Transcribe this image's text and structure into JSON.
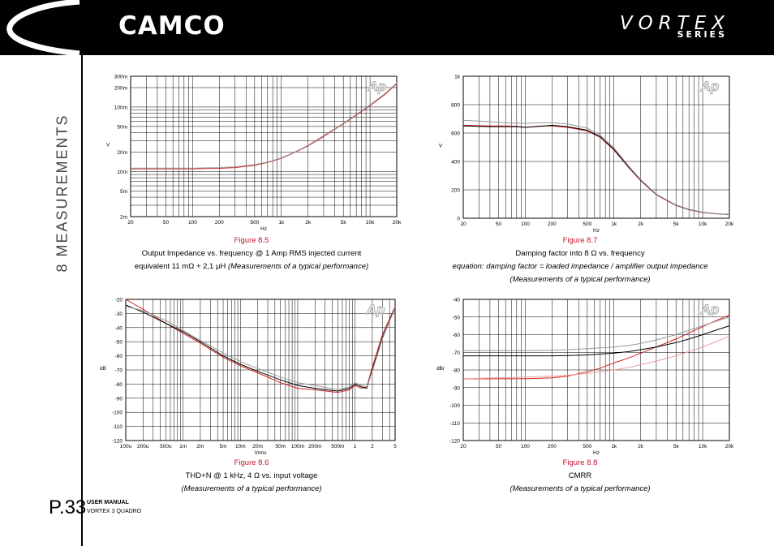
{
  "header": {
    "brand": "CAMCO",
    "series_name": "VORTEX",
    "series_sub": "SERIES"
  },
  "section_title": "8 MEASUREMENTS",
  "page_number": "P.33",
  "footer": {
    "manual_label": "USER MANUAL",
    "model": "VORTEX 3 QUADRO"
  },
  "ap_logo": "Ap",
  "colors": {
    "red": "#d42020",
    "black": "#000000",
    "gray": "#999999",
    "lightred": "#e8a0a0"
  },
  "figures": [
    {
      "number": "Figure 8.5",
      "caption": "Output Impedance vs. frequency @ 1 Amp RMS injected current",
      "caption2": "equivalent 11 mΩ + 2,1 μH",
      "note": "(Measurements of a typical performance)"
    },
    {
      "number": "Figure 8.7",
      "caption": "Damping factor into 8 Ω vs. frequency",
      "caption2": "equation: damping factor = loaded impedance / amplifier output impedance",
      "note": "(Measurements of a typical performance)"
    },
    {
      "number": "Figure 8.6",
      "caption": "THD+N @ 1 kHz, 4 Ω vs. input voltage",
      "caption2": "",
      "note": "(Measurements of a typical performance)"
    },
    {
      "number": "Figure 8.8",
      "caption": "CMRR",
      "caption2": "",
      "note": "(Measurements of a typical performance)"
    }
  ],
  "chart_data": [
    {
      "type": "line",
      "xscale": "log",
      "yscale": "log",
      "xlim": [
        20,
        20000
      ],
      "ylim": [
        0.002,
        0.3
      ],
      "xlabel": "Hz",
      "ylabel": "V",
      "xticks": [
        {
          "v": 20,
          "l": "20"
        },
        {
          "v": 50,
          "l": "50"
        },
        {
          "v": 100,
          "l": "100"
        },
        {
          "v": 200,
          "l": "200"
        },
        {
          "v": 500,
          "l": "500"
        },
        {
          "v": 1000,
          "l": "1k"
        },
        {
          "v": 2000,
          "l": "2k"
        },
        {
          "v": 5000,
          "l": "5k"
        },
        {
          "v": 10000,
          "l": "10k"
        },
        {
          "v": 20000,
          "l": "20k"
        }
      ],
      "yticks": [
        {
          "v": 0.002,
          "l": "2m"
        },
        {
          "v": 0.005,
          "l": "5m"
        },
        {
          "v": 0.01,
          "l": "10m"
        },
        {
          "v": 0.02,
          "l": "20m"
        },
        {
          "v": 0.05,
          "l": "50m"
        },
        {
          "v": 0.1,
          "l": "100m"
        },
        {
          "v": 0.2,
          "l": "200m"
        },
        {
          "v": 0.3,
          "l": "300m"
        }
      ],
      "series": [
        {
          "color": "#d42020",
          "x": [
            20,
            50,
            100,
            200,
            300,
            500,
            700,
            1000,
            1500,
            2000,
            3000,
            5000,
            7000,
            10000,
            15000,
            20000
          ],
          "y": [
            0.011,
            0.011,
            0.011,
            0.0112,
            0.0115,
            0.0125,
            0.0138,
            0.016,
            0.0205,
            0.025,
            0.035,
            0.055,
            0.075,
            0.105,
            0.16,
            0.23
          ]
        },
        {
          "color": "#999999",
          "x": [
            20,
            50,
            100,
            200,
            300,
            500,
            700,
            1000,
            1500,
            2000,
            3000,
            5000,
            7000,
            10000,
            15000,
            20000
          ],
          "y": [
            0.0113,
            0.0113,
            0.0113,
            0.0115,
            0.0118,
            0.0128,
            0.014,
            0.0163,
            0.0208,
            0.0255,
            0.036,
            0.056,
            0.077,
            0.108,
            0.165,
            0.235
          ]
        }
      ]
    },
    {
      "type": "line",
      "xscale": "log",
      "yscale": "linear",
      "xlim": [
        20,
        20000
      ],
      "ylim": [
        0,
        1000
      ],
      "xlabel": "Hz",
      "ylabel": "V",
      "xticks": [
        {
          "v": 20,
          "l": "20"
        },
        {
          "v": 50,
          "l": "50"
        },
        {
          "v": 100,
          "l": "100"
        },
        {
          "v": 200,
          "l": "200"
        },
        {
          "v": 500,
          "l": "500"
        },
        {
          "v": 1000,
          "l": "1k"
        },
        {
          "v": 2000,
          "l": "2k"
        },
        {
          "v": 5000,
          "l": "5k"
        },
        {
          "v": 10000,
          "l": "10k"
        },
        {
          "v": 20000,
          "l": "20k"
        }
      ],
      "yticks": [
        {
          "v": 0,
          "l": "0"
        },
        {
          "v": 200,
          "l": "200"
        },
        {
          "v": 400,
          "l": "400"
        },
        {
          "v": 600,
          "l": "600"
        },
        {
          "v": 800,
          "l": "800"
        },
        {
          "v": 1000,
          "l": "1k"
        }
      ],
      "series": [
        {
          "color": "#d42020",
          "x": [
            20,
            40,
            60,
            80,
            100,
            150,
            200,
            300,
            500,
            700,
            1000,
            1500,
            2000,
            3000,
            5000,
            7000,
            10000,
            15000,
            20000
          ],
          "y": [
            655,
            650,
            650,
            648,
            640,
            650,
            650,
            640,
            615,
            570,
            480,
            350,
            265,
            165,
            90,
            60,
            40,
            30,
            25
          ]
        },
        {
          "color": "#000000",
          "x": [
            20,
            40,
            60,
            80,
            100,
            150,
            200,
            300,
            500,
            700,
            1000,
            1500,
            2000,
            3000,
            5000,
            7000,
            10000,
            15000,
            20000
          ],
          "y": [
            650,
            645,
            645,
            645,
            640,
            648,
            655,
            645,
            620,
            575,
            485,
            355,
            268,
            168,
            92,
            62,
            42,
            31,
            26
          ]
        },
        {
          "color": "#999999",
          "x": [
            20,
            40,
            60,
            80,
            100,
            150,
            200,
            300,
            500,
            700,
            1000,
            1500,
            2000,
            3000,
            5000,
            7000,
            10000,
            15000,
            20000
          ],
          "y": [
            690,
            680,
            672,
            670,
            668,
            672,
            672,
            664,
            635,
            585,
            495,
            360,
            272,
            170,
            93,
            63,
            42,
            31,
            26
          ]
        }
      ]
    },
    {
      "type": "line",
      "xscale": "log",
      "yscale": "linear",
      "xlim": [
        0.0001,
        5
      ],
      "ylim": [
        -120,
        -20
      ],
      "xlabel": "Vrms",
      "ylabel": "dB",
      "xticks": [
        {
          "v": 0.0001,
          "l": "100u"
        },
        {
          "v": 0.0002,
          "l": "200u"
        },
        {
          "v": 0.0005,
          "l": "500u"
        },
        {
          "v": 0.001,
          "l": "1m"
        },
        {
          "v": 0.002,
          "l": "2m"
        },
        {
          "v": 0.005,
          "l": "5m"
        },
        {
          "v": 0.01,
          "l": "10m"
        },
        {
          "v": 0.02,
          "l": "20m"
        },
        {
          "v": 0.05,
          "l": "50m"
        },
        {
          "v": 0.1,
          "l": "100m"
        },
        {
          "v": 0.2,
          "l": "200m"
        },
        {
          "v": 0.5,
          "l": "500m"
        },
        {
          "v": 1,
          "l": "1"
        },
        {
          "v": 2,
          "l": "2"
        },
        {
          "v": 5,
          "l": "5"
        }
      ],
      "yticks": [
        {
          "v": -120,
          "l": "-120"
        },
        {
          "v": -110,
          "l": "-110"
        },
        {
          "v": -100,
          "l": "-100"
        },
        {
          "v": -90,
          "l": "-90"
        },
        {
          "v": -80,
          "l": "-80"
        },
        {
          "v": -70,
          "l": "-70"
        },
        {
          "v": -60,
          "l": "-60"
        },
        {
          "v": -50,
          "l": "-50"
        },
        {
          "v": -40,
          "l": "-40"
        },
        {
          "v": -30,
          "l": "-30"
        },
        {
          "v": -20,
          "l": "-20"
        }
      ],
      "series": [
        {
          "color": "#d42020",
          "x": [
            0.0001,
            0.0002,
            0.0005,
            0.001,
            0.002,
            0.005,
            0.01,
            0.02,
            0.05,
            0.1,
            0.2,
            0.5,
            0.8,
            1,
            1.3,
            1.6,
            2,
            3,
            5
          ],
          "y": [
            -20,
            -27,
            -37,
            -44,
            -51,
            -61,
            -67,
            -72,
            -79,
            -83,
            -84,
            -86,
            -84,
            -81,
            -83,
            -82,
            -68,
            -45,
            -25
          ]
        },
        {
          "color": "#000000",
          "x": [
            0.0001,
            0.0002,
            0.0005,
            0.001,
            0.002,
            0.005,
            0.01,
            0.02,
            0.05,
            0.1,
            0.2,
            0.5,
            0.8,
            1,
            1.3,
            1.6,
            2,
            3,
            5
          ],
          "y": [
            -24,
            -29,
            -37,
            -43,
            -50,
            -60,
            -66,
            -71,
            -77,
            -81,
            -83,
            -85,
            -83,
            -80,
            -82,
            -83,
            -70,
            -47,
            -26
          ]
        },
        {
          "color": "#999999",
          "x": [
            0.0001,
            0.0002,
            0.0005,
            0.001,
            0.002,
            0.005,
            0.01,
            0.02,
            0.05,
            0.1,
            0.2,
            0.5,
            0.8,
            1,
            1.3,
            1.6,
            2,
            3,
            5
          ],
          "y": [
            -25,
            -28,
            -35,
            -42,
            -49,
            -58,
            -64,
            -69,
            -75,
            -79,
            -81,
            -84,
            -82,
            -79,
            -81,
            -82,
            -71,
            -48,
            -26
          ]
        }
      ]
    },
    {
      "type": "line",
      "xscale": "log",
      "yscale": "linear",
      "xlim": [
        20,
        20000
      ],
      "ylim": [
        -120,
        -40
      ],
      "xlabel": "Hz",
      "ylabel": "dBr",
      "xticks": [
        {
          "v": 20,
          "l": "20"
        },
        {
          "v": 50,
          "l": "50"
        },
        {
          "v": 100,
          "l": "100"
        },
        {
          "v": 200,
          "l": "200"
        },
        {
          "v": 500,
          "l": "500"
        },
        {
          "v": 1000,
          "l": "1k"
        },
        {
          "v": 2000,
          "l": "2k"
        },
        {
          "v": 5000,
          "l": "5k"
        },
        {
          "v": 10000,
          "l": "10k"
        },
        {
          "v": 20000,
          "l": "20k"
        }
      ],
      "yticks": [
        {
          "v": -120,
          "l": "-120"
        },
        {
          "v": -110,
          "l": "-110"
        },
        {
          "v": -100,
          "l": "-100"
        },
        {
          "v": -90,
          "l": "-90"
        },
        {
          "v": -80,
          "l": "-80"
        },
        {
          "v": -70,
          "l": "-70"
        },
        {
          "v": -60,
          "l": "-60"
        },
        {
          "v": -50,
          "l": "-50"
        },
        {
          "v": -40,
          "l": "-40"
        }
      ],
      "series": [
        {
          "color": "#d42020",
          "x": [
            20,
            50,
            100,
            200,
            300,
            500,
            700,
            1000,
            1500,
            2000,
            3000,
            5000,
            7000,
            10000,
            15000,
            20000
          ],
          "y": [
            -85,
            -85,
            -85,
            -84.5,
            -83.5,
            -81,
            -79,
            -76,
            -73,
            -70.5,
            -67,
            -62.5,
            -59,
            -55.5,
            -51.5,
            -49
          ]
        },
        {
          "color": "#000000",
          "x": [
            20,
            50,
            100,
            200,
            300,
            500,
            700,
            1000,
            1500,
            2000,
            3000,
            5000,
            7000,
            10000,
            15000,
            20000
          ],
          "y": [
            -72,
            -72,
            -72,
            -72,
            -71.8,
            -71.5,
            -71,
            -70.5,
            -69.5,
            -68.5,
            -67,
            -64.5,
            -62.5,
            -60,
            -57,
            -55
          ]
        },
        {
          "color": "#999999",
          "x": [
            20,
            50,
            100,
            200,
            300,
            500,
            700,
            1000,
            1500,
            2000,
            3000,
            5000,
            7000,
            10000,
            15000,
            20000
          ],
          "y": [
            -69,
            -69,
            -69,
            -68.8,
            -68.5,
            -68,
            -67.5,
            -67,
            -66,
            -65,
            -63,
            -60,
            -57.5,
            -55,
            -52,
            -50
          ]
        },
        {
          "color": "#e8a0a0",
          "x": [
            20,
            50,
            100,
            200,
            300,
            500,
            700,
            1000,
            1500,
            2000,
            3000,
            5000,
            7000,
            10000,
            15000,
            20000
          ],
          "y": [
            -85,
            -84.5,
            -84,
            -83.5,
            -83,
            -82,
            -81,
            -80,
            -78.5,
            -77,
            -75,
            -72,
            -69.5,
            -67,
            -63.5,
            -61
          ]
        }
      ]
    }
  ]
}
